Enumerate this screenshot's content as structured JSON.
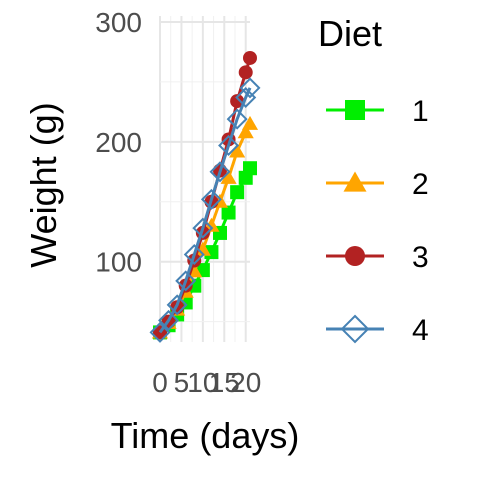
{
  "chart_data": {
    "type": "line",
    "title": "",
    "xlabel": "Time (days)",
    "ylabel": "Weight (g)",
    "xlim": [
      0,
      21
    ],
    "ylim": [
      33,
      305
    ],
    "x_ticks": [
      0,
      5,
      10,
      15,
      20
    ],
    "x_tick_labels": [
      "0",
      "5",
      "10",
      "15",
      "20"
    ],
    "y_ticks": [
      100,
      200,
      300
    ],
    "y_tick_labels": [
      "100",
      "200",
      "300"
    ],
    "grid": true,
    "legend": {
      "title": "Diet",
      "position": "right"
    },
    "x": [
      0,
      2,
      4,
      6,
      8,
      10,
      12,
      14,
      16,
      18,
      20,
      21
    ],
    "series": [
      {
        "name": "1",
        "color": "#00ee00",
        "marker": "filled-square",
        "values": [
          41,
          47,
          56,
          66,
          80,
          93,
          108,
          124,
          141,
          158,
          170,
          178
        ]
      },
      {
        "name": "2",
        "color": "#ffa500",
        "marker": "filled-triangle",
        "values": [
          41,
          49,
          60,
          75,
          92,
          110,
          130,
          150,
          170,
          192,
          208,
          215
        ]
      },
      {
        "name": "3",
        "color": "#b22222",
        "marker": "filled-circle",
        "values": [
          41,
          50,
          62,
          80,
          101,
          124,
          150,
          176,
          202,
          234,
          258,
          270
        ]
      },
      {
        "name": "4",
        "color": "#4682b4",
        "marker": "open-diamond",
        "values": [
          41,
          51,
          64,
          84,
          106,
          128,
          152,
          175,
          197,
          219,
          237,
          245
        ]
      }
    ]
  }
}
